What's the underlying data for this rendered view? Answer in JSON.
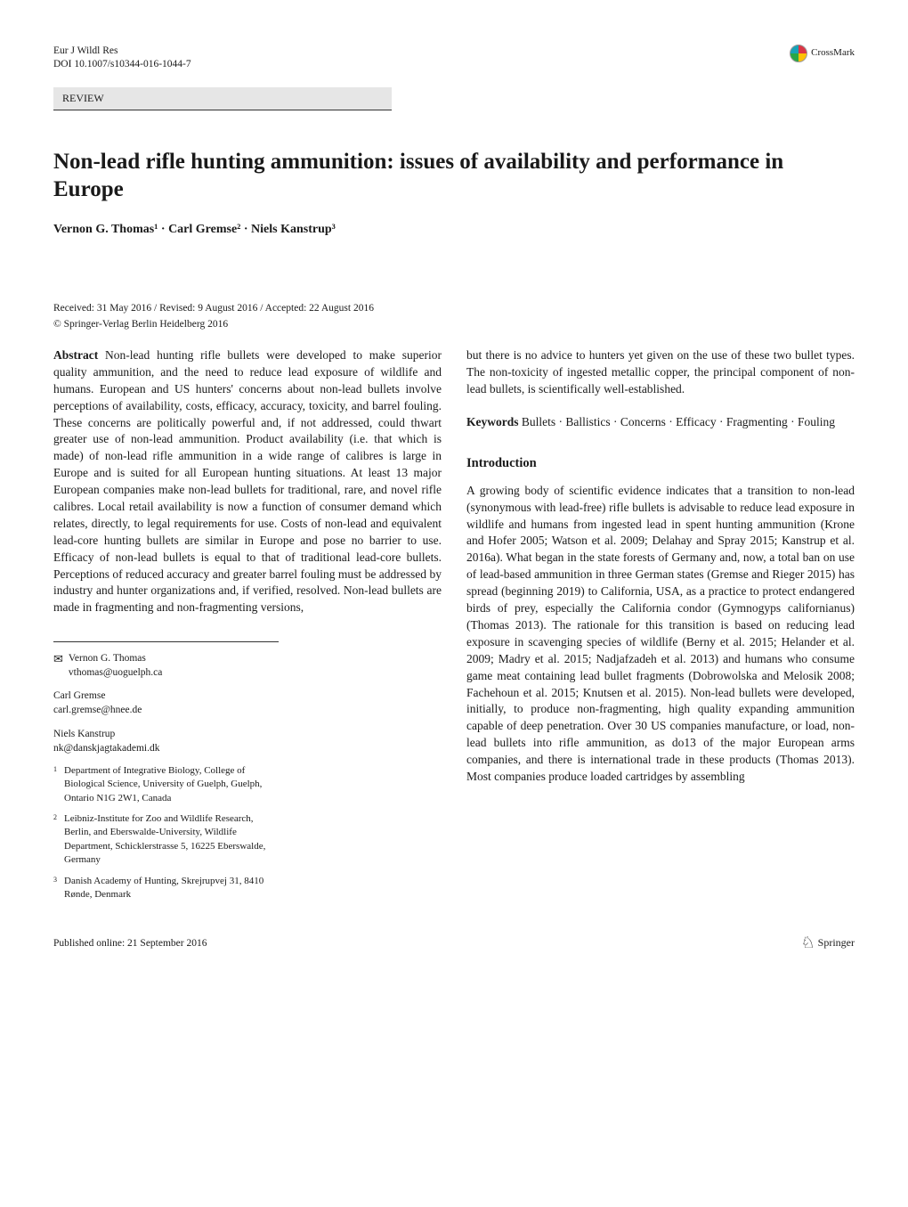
{
  "header": {
    "journal": "Eur J Wildl Res",
    "doi": "DOI 10.1007/s10344-016-1044-7",
    "crossmark_label": "CrossMark"
  },
  "section_label": "REVIEW",
  "title": "Non-lead rifle hunting ammunition: issues of availability and performance in Europe",
  "authors_line": "Vernon G. Thomas¹ · Carl Gremse² · Niels Kanstrup³",
  "dates": "Received: 31 May 2016 / Revised: 9 August 2016 / Accepted: 22 August 2016",
  "copyright": "© Springer-Verlag Berlin Heidelberg 2016",
  "abstract": {
    "label": "Abstract",
    "text": "Non-lead hunting rifle bullets were developed to make superior quality ammunition, and the need to reduce lead exposure of wildlife and humans. European and US hunters' concerns about non-lead bullets involve perceptions of availability, costs, efficacy, accuracy, toxicity, and barrel fouling. These concerns are politically powerful and, if not addressed, could thwart greater use of non-lead ammunition. Product availability (i.e. that which is made) of non-lead rifle ammunition in a wide range of calibres is large in Europe and is suited for all European hunting situations. At least 13 major European companies make non-lead bullets for traditional, rare, and novel rifle calibres. Local retail availability is now a function of consumer demand which relates, directly, to legal requirements for use. Costs of non-lead and equivalent lead-core hunting bullets are similar in Europe and pose no barrier to use. Efficacy of non-lead bullets is equal to that of traditional lead-core bullets. Perceptions of reduced accuracy and greater barrel fouling must be addressed by industry and hunter organizations and, if verified, resolved. Non-lead bullets are made in fragmenting and non-fragmenting versions,",
    "continuation": "but there is no advice to hunters yet given on the use of these two bullet types. The non-toxicity of ingested metallic copper, the principal component of non-lead bullets, is scientifically well-established."
  },
  "keywords": {
    "label": "Keywords",
    "text": "Bullets · Ballistics · Concerns · Efficacy · Fragmenting · Fouling"
  },
  "introduction": {
    "heading": "Introduction",
    "text": "A growing body of scientific evidence indicates that a transition to non-lead (synonymous with lead-free) rifle bullets is advisable to reduce lead exposure in wildlife and humans from ingested lead in spent hunting ammunition (Krone and Hofer 2005; Watson et al. 2009; Delahay and Spray 2015; Kanstrup et al. 2016a). What began in the state forests of Germany and, now, a total ban on use of lead-based ammunition in three German states (Gremse and Rieger 2015) has spread (beginning 2019) to California, USA, as a practice to protect endangered birds of prey, especially the California condor (Gymnogyps californianus) (Thomas 2013). The rationale for this transition is based on reducing lead exposure in scavenging species of wildlife (Berny et al. 2015; Helander et al. 2009; Madry et al. 2015; Nadjafzadeh et al. 2013) and humans who consume game meat containing lead bullet fragments (Dobrowolska and Melosik 2008; Fachehoun et al. 2015; Knutsen et al. 2015). Non-lead bullets were developed, initially, to produce non-fragmenting, high quality expanding ammunition capable of deep penetration. Over 30 US companies manufacture, or load, non-lead bullets into rifle ammunition, as do13 of the major European arms companies, and there is international trade in these products (Thomas 2013). Most companies produce loaded cartridges by assembling"
  },
  "correspondence": {
    "primary": {
      "name": "Vernon G. Thomas",
      "email": "vthomas@uoguelph.ca"
    },
    "others": [
      {
        "name": "Carl Gremse",
        "email": "carl.gremse@hnee.de"
      },
      {
        "name": "Niels Kanstrup",
        "email": "nk@danskjagtakademi.dk"
      }
    ]
  },
  "affiliations": [
    {
      "num": "1",
      "text": "Department of Integrative Biology, College of Biological Science, University of Guelph, Guelph, Ontario N1G 2W1, Canada"
    },
    {
      "num": "2",
      "text": "Leibniz-Institute for Zoo and Wildlife Research, Berlin, and Eberswalde-University, Wildlife Department, Schicklerstrasse 5, 16225 Eberswalde, Germany"
    },
    {
      "num": "3",
      "text": "Danish Academy of Hunting, Skrejrupvej 31, 8410 Rønde, Denmark"
    }
  ],
  "footer": {
    "pub_online": "Published online: 21 September 2016",
    "springer": "Springer"
  },
  "colors": {
    "background": "#ffffff",
    "text": "#1a1a1a",
    "section_bg": "#e6e6e6",
    "rule": "#333333"
  },
  "typography": {
    "body_fontsize_pt": 10,
    "title_fontsize_pt": 18,
    "heading_fontsize_pt": 11,
    "small_fontsize_pt": 8.5,
    "font_family": "serif"
  }
}
